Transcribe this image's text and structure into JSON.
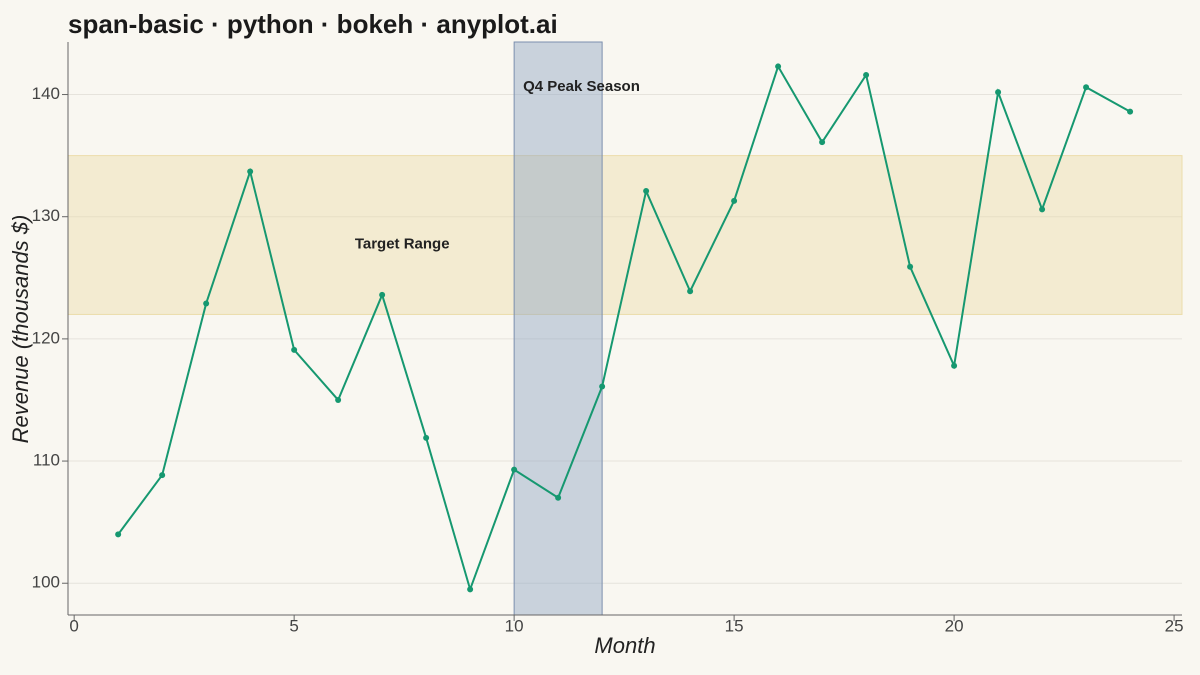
{
  "chart_data": {
    "type": "line",
    "title": "span-basic · python · bokeh · anyplot.ai",
    "x_label": "Month",
    "y_label": "Revenue (thousands $)",
    "x": [
      1,
      2,
      3,
      4,
      5,
      6,
      7,
      8,
      9,
      10,
      11,
      12,
      13,
      14,
      15,
      16,
      17,
      18,
      19,
      20,
      21,
      22,
      23,
      24
    ],
    "series": [
      {
        "name": "Revenue",
        "color": "#169870",
        "values": [
          104.0,
          108.85,
          122.9,
          133.7,
          119.1,
          115.0,
          123.6,
          111.9,
          99.5,
          109.3,
          107.0,
          116.1,
          132.1,
          123.9,
          131.3,
          142.3,
          136.1,
          141.6,
          125.9,
          117.8,
          140.2,
          130.6,
          140.6,
          138.6
        ]
      }
    ],
    "hspan": {
      "from": 122,
      "to": 135,
      "label": "Target Range",
      "color": "#ecdcaa"
    },
    "vspan": {
      "from": 10,
      "to": 12,
      "label": "Q4 Peak Season",
      "color": "#8ea3c4"
    },
    "xlim": [
      -0.14,
      25.18
    ],
    "ylim": [
      97.4,
      144.3
    ],
    "xticks": [
      0,
      5,
      10,
      15,
      20,
      25
    ],
    "yticks": [
      100,
      110,
      120,
      130,
      140
    ],
    "grid": true
  }
}
